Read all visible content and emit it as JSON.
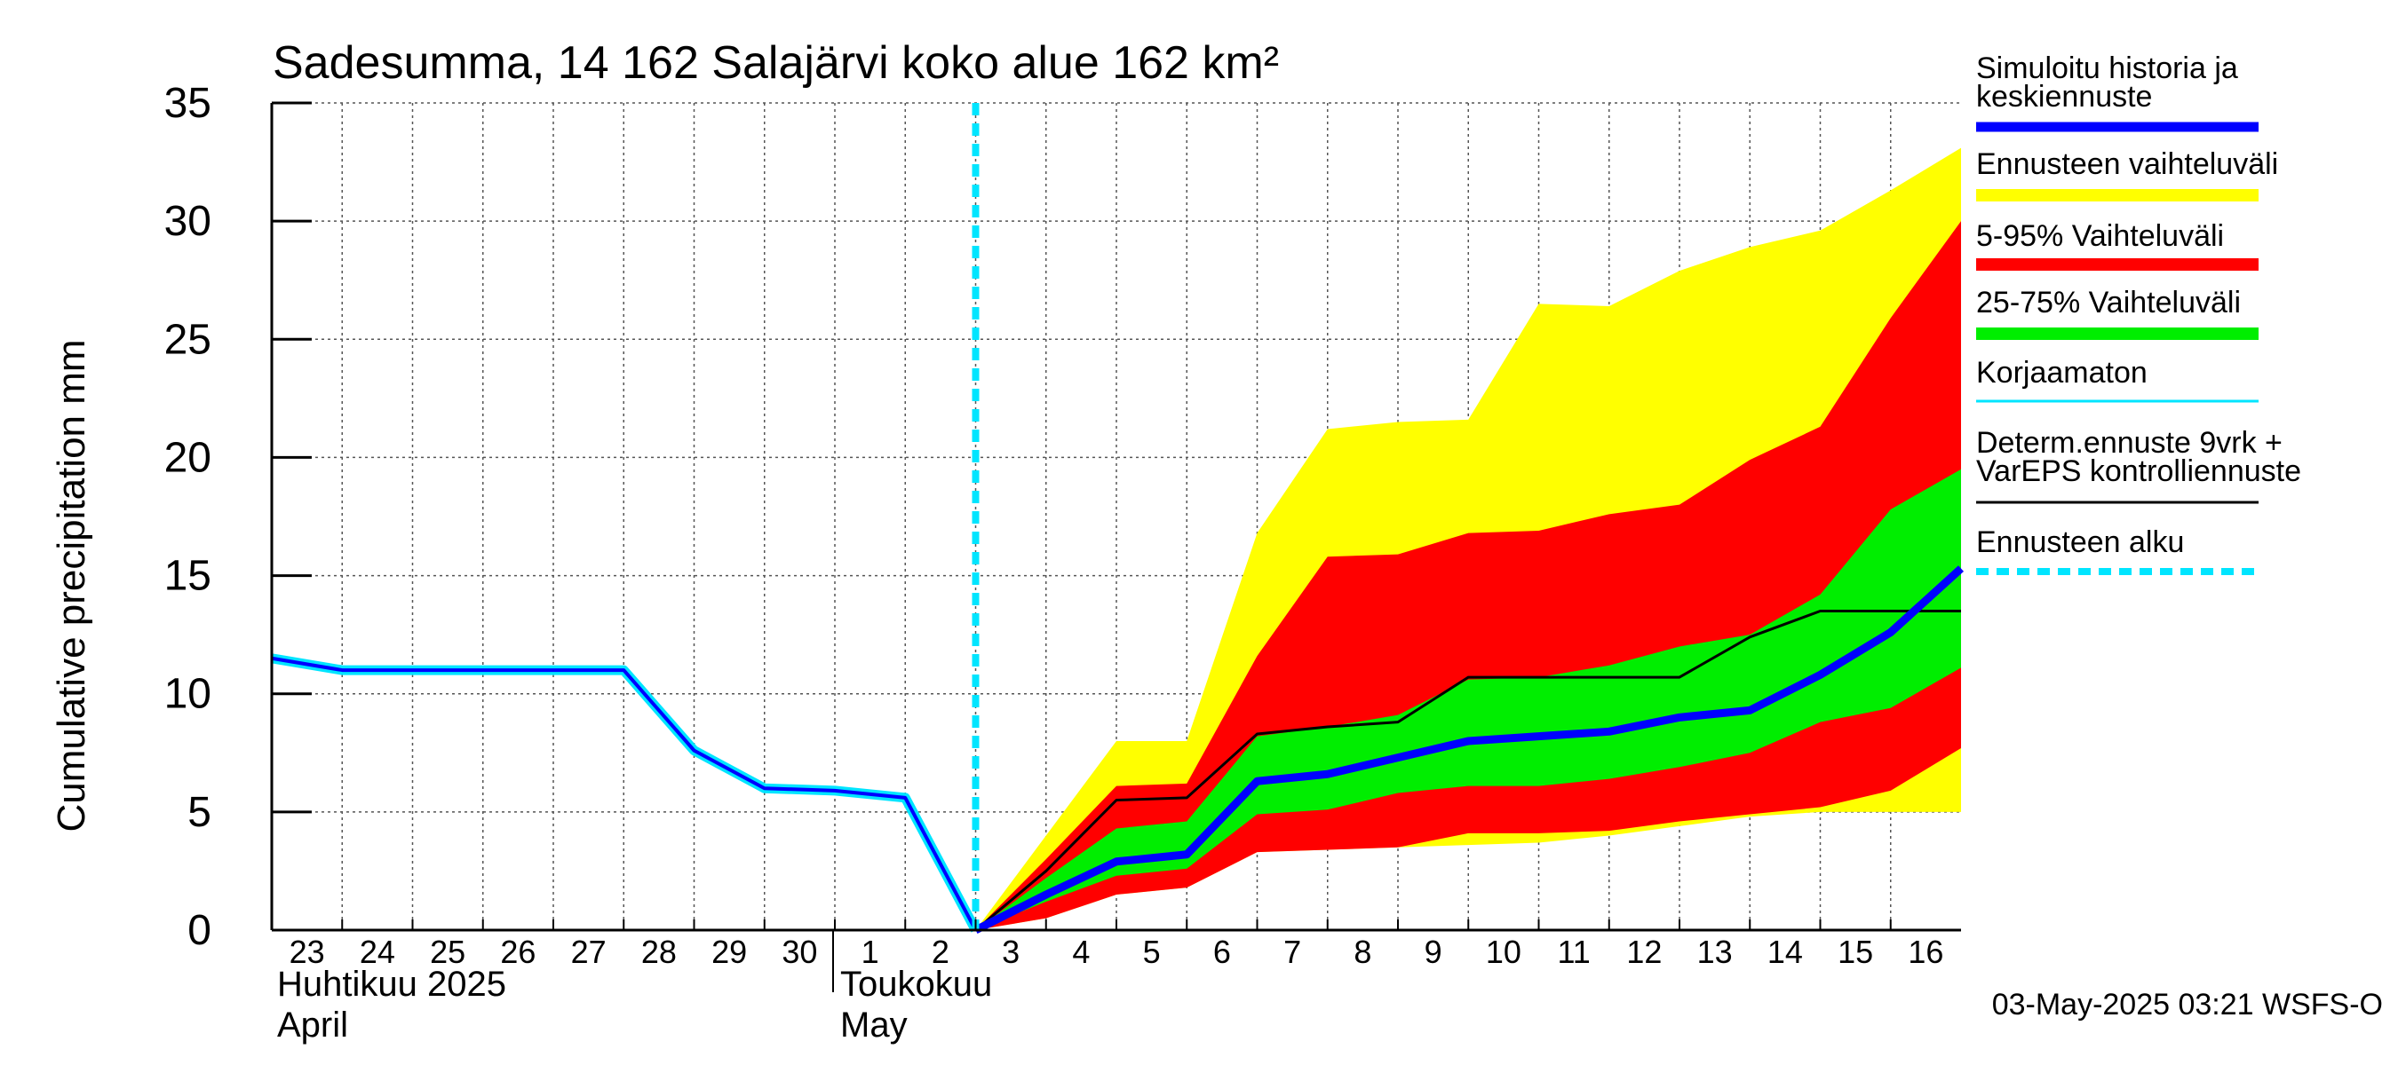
{
  "chart_data": {
    "type": "area",
    "title": "Sadesumma, 14 162 Salajärvi koko alue 162 km²",
    "ylabel": "Cumulative precipitation   mm",
    "ylim": [
      0,
      35
    ],
    "yticks": [
      0,
      5,
      10,
      15,
      20,
      25,
      30,
      35
    ],
    "grid": true,
    "x_day_labels": [
      "23",
      "24",
      "25",
      "26",
      "27",
      "28",
      "29",
      "30",
      "1",
      "2",
      "3",
      "4",
      "5",
      "6",
      "7",
      "8",
      "9",
      "10",
      "11",
      "12",
      "13",
      "14",
      "15",
      "16"
    ],
    "month_labels": [
      {
        "fi": "Huhtikuu  2025",
        "en": "April"
      },
      {
        "fi": "Toukokuu",
        "en": "May"
      }
    ],
    "forecast_start_day": 10,
    "footer": "03-May-2025 03:21 WSFS-O",
    "legend_position": "right",
    "legend": [
      {
        "label": "Simuloitu historia ja keskiennuste",
        "color": "#0000ff",
        "style": "thick"
      },
      {
        "label": "Ennusteen vaihteluväli",
        "color": "#ffff00",
        "style": "band"
      },
      {
        "label": "5-95% Vaihteluväli",
        "color": "#ff0000",
        "style": "band"
      },
      {
        "label": "25-75% Vaihteluväli",
        "color": "#00ee00",
        "style": "band"
      },
      {
        "label": "Korjaamaton",
        "color": "#00e5ff",
        "style": "thin"
      },
      {
        "label": "Determ.ennuste 9vrk + VarEPS kontrolliennuste",
        "color": "#000000",
        "style": "thin"
      },
      {
        "label": "Ennusteen alku",
        "color": "#00e5ff",
        "style": "dashed"
      }
    ],
    "history": {
      "x": [
        0,
        1,
        2,
        3,
        4,
        5,
        6,
        7,
        8,
        9,
        10
      ],
      "y": [
        11.5,
        11.0,
        11.0,
        11.0,
        11.0,
        11.0,
        7.6,
        6.0,
        5.9,
        5.6,
        0.0
      ]
    },
    "forecast_x": [
      10,
      11,
      12,
      13,
      14,
      15,
      16,
      17,
      18,
      19,
      20,
      21,
      22,
      23,
      24
    ],
    "series": [
      {
        "name": "Ennusteen vaihteluväli",
        "color": "#ffff00",
        "lower": [
          0.0,
          0.5,
          1.5,
          1.8,
          3.3,
          3.4,
          3.5,
          3.6,
          3.7,
          4.0,
          4.4,
          4.8,
          5.0,
          5.0,
          5.0
        ],
        "upper": [
          0.0,
          4.0,
          8.0,
          8.0,
          16.8,
          21.2,
          21.5,
          21.6,
          26.5,
          26.4,
          27.9,
          28.9,
          29.6,
          31.3,
          33.1
        ]
      },
      {
        "name": "5-95% Vaihteluväli",
        "color": "#ff0000",
        "lower": [
          0.0,
          0.5,
          1.5,
          1.8,
          3.3,
          3.4,
          3.5,
          4.1,
          4.1,
          4.2,
          4.6,
          4.9,
          5.2,
          5.9,
          7.7
        ],
        "upper": [
          0.0,
          3.0,
          6.1,
          6.2,
          11.6,
          15.8,
          15.9,
          16.8,
          16.9,
          17.6,
          18.0,
          19.9,
          21.3,
          25.9,
          30.0
        ]
      },
      {
        "name": "25-75% Vaihteluväli",
        "color": "#00ee00",
        "lower": [
          0.0,
          1.2,
          2.3,
          2.6,
          4.9,
          5.1,
          5.8,
          6.1,
          6.1,
          6.4,
          6.9,
          7.5,
          8.8,
          9.4,
          11.1
        ],
        "upper": [
          0.0,
          2.2,
          4.3,
          4.6,
          8.2,
          8.6,
          9.1,
          10.6,
          10.7,
          11.2,
          12.0,
          12.5,
          14.2,
          17.8,
          19.5
        ]
      },
      {
        "name": "Determ.ennuste 9vrk + VarEPS kontrolliennuste",
        "color": "#000000",
        "y": [
          0.0,
          2.5,
          5.5,
          5.6,
          8.3,
          8.6,
          8.8,
          10.7,
          10.7,
          10.7,
          10.7,
          12.4,
          13.5,
          13.5,
          13.5
        ]
      },
      {
        "name": "Simuloitu historia ja keskiennuste",
        "color": "#0000ff",
        "y": [
          0.0,
          1.5,
          2.9,
          3.2,
          6.3,
          6.6,
          7.3,
          8.0,
          8.2,
          8.4,
          9.0,
          9.3,
          10.8,
          12.6,
          15.3
        ]
      }
    ]
  }
}
